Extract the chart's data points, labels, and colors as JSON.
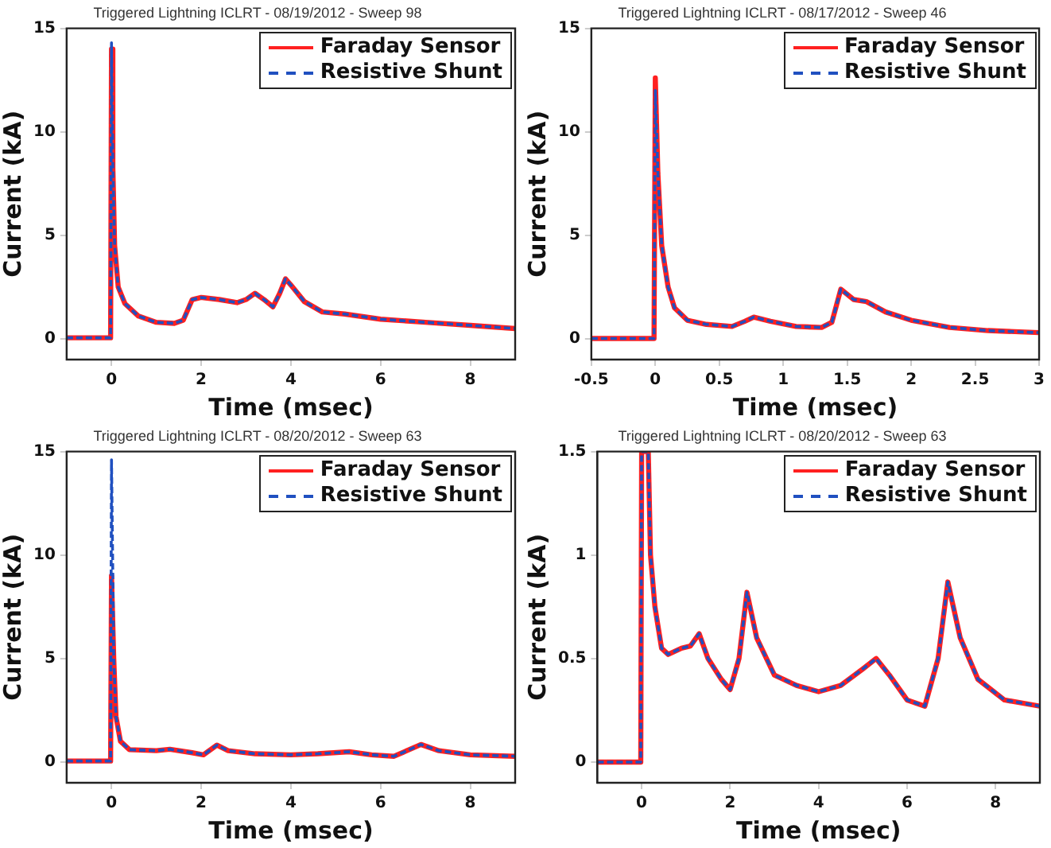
{
  "chart_data": [
    {
      "type": "line",
      "title": "Triggered Lightning ICLRT - 08/19/2012 - Sweep 98",
      "xlabel": "Time (msec)",
      "ylabel": "Current (kA)",
      "xlim": [
        -1,
        9
      ],
      "xticks": [
        0,
        2,
        4,
        6,
        8
      ],
      "ylim": [
        -1,
        15
      ],
      "yticks": [
        0,
        5,
        10,
        15
      ],
      "legend": "top right",
      "grid": false,
      "x": [
        -1,
        -0.02,
        0,
        0.03,
        0.07,
        0.15,
        0.3,
        0.6,
        1.0,
        1.4,
        1.6,
        1.8,
        2.0,
        2.4,
        2.8,
        3.0,
        3.2,
        3.4,
        3.6,
        3.75,
        3.88,
        4.0,
        4.3,
        4.7,
        5.2,
        6,
        7,
        8,
        9
      ],
      "series": [
        {
          "name": "Faraday Sensor",
          "color": "#ff2020",
          "line_style": "solid",
          "values": [
            0.05,
            0.05,
            14.0,
            8.3,
            4.5,
            2.5,
            1.7,
            1.1,
            0.8,
            0.75,
            0.9,
            1.9,
            2.0,
            1.9,
            1.75,
            1.9,
            2.2,
            1.9,
            1.55,
            2.2,
            2.9,
            2.6,
            1.8,
            1.3,
            1.2,
            0.95,
            0.8,
            0.65,
            0.5
          ]
        },
        {
          "name": "Resistive Shunt",
          "color": "#2050c0",
          "line_style": "dashed",
          "values": [
            0.05,
            0.05,
            14.3,
            8.3,
            4.5,
            2.5,
            1.7,
            1.1,
            0.8,
            0.75,
            0.9,
            1.9,
            2.0,
            1.9,
            1.75,
            1.9,
            2.2,
            1.9,
            1.55,
            2.2,
            2.9,
            2.6,
            1.8,
            1.3,
            1.2,
            0.95,
            0.8,
            0.65,
            0.5
          ]
        }
      ]
    },
    {
      "type": "line",
      "title": "Triggered Lightning ICLRT - 08/17/2012 - Sweep 46",
      "xlabel": "Time (msec)",
      "ylabel": "Current (kA)",
      "xlim": [
        -0.5,
        3
      ],
      "xticks": [
        -0.5,
        0,
        0.5,
        1,
        1.5,
        2,
        2.5,
        3
      ],
      "ylim": [
        -1,
        15
      ],
      "yticks": [
        0,
        5,
        10,
        15
      ],
      "legend": "top right",
      "grid": false,
      "x": [
        -0.5,
        -0.01,
        0,
        0.02,
        0.05,
        0.1,
        0.15,
        0.25,
        0.4,
        0.6,
        0.7,
        0.77,
        0.9,
        1.1,
        1.3,
        1.38,
        1.45,
        1.55,
        1.65,
        1.8,
        2.0,
        2.3,
        2.6,
        3
      ],
      "series": [
        {
          "name": "Faraday Sensor",
          "color": "#ff2020",
          "line_style": "solid",
          "values": [
            0.02,
            0.02,
            12.6,
            8,
            4.5,
            2.5,
            1.5,
            0.9,
            0.7,
            0.6,
            0.85,
            1.05,
            0.85,
            0.6,
            0.55,
            0.8,
            2.4,
            1.9,
            1.8,
            1.3,
            0.9,
            0.55,
            0.4,
            0.3
          ]
        },
        {
          "name": "Resistive Shunt",
          "color": "#2050c0",
          "line_style": "dashed",
          "values": [
            0.02,
            0.02,
            12.0,
            8,
            4.5,
            2.5,
            1.5,
            0.9,
            0.7,
            0.6,
            0.85,
            1.05,
            0.85,
            0.6,
            0.55,
            0.8,
            2.4,
            1.9,
            1.8,
            1.3,
            0.9,
            0.55,
            0.4,
            0.3
          ]
        }
      ]
    },
    {
      "type": "line",
      "title": "Triggered Lightning ICLRT - 08/20/2012 - Sweep 63",
      "xlabel": "Time (msec)",
      "ylabel": "Current (kA)",
      "xlim": [
        -1,
        9
      ],
      "xticks": [
        0,
        2,
        4,
        6,
        8
      ],
      "ylim": [
        -1,
        15
      ],
      "yticks": [
        0,
        5,
        10,
        15
      ],
      "legend": "top right",
      "grid": false,
      "x": [
        -1,
        -0.02,
        0,
        0.05,
        0.1,
        0.2,
        0.4,
        1.0,
        1.3,
        1.8,
        2.05,
        2.35,
        2.6,
        3.2,
        4,
        4.6,
        5.3,
        5.8,
        6.3,
        6.9,
        7.3,
        8,
        9
      ],
      "series": [
        {
          "name": "Faraday Sensor",
          "color": "#ff2020",
          "line_style": "solid",
          "values": [
            0.05,
            0.05,
            9.0,
            5,
            2.2,
            1.0,
            0.6,
            0.55,
            0.62,
            0.45,
            0.35,
            0.82,
            0.55,
            0.4,
            0.35,
            0.4,
            0.5,
            0.35,
            0.28,
            0.85,
            0.55,
            0.35,
            0.28
          ]
        },
        {
          "name": "Resistive Shunt",
          "color": "#2050c0",
          "line_style": "dashed",
          "values": [
            0.05,
            0.05,
            14.6,
            5,
            2.2,
            1.0,
            0.6,
            0.55,
            0.62,
            0.45,
            0.35,
            0.82,
            0.55,
            0.4,
            0.35,
            0.4,
            0.5,
            0.35,
            0.28,
            0.85,
            0.55,
            0.35,
            0.28
          ]
        }
      ]
    },
    {
      "type": "line",
      "title": "Triggered Lightning ICLRT - 08/20/2012 - Sweep 63",
      "xlabel": "Time (msec)",
      "ylabel": "Current (kA)",
      "xlim": [
        -1,
        9
      ],
      "xticks": [
        0,
        2,
        4,
        6,
        8
      ],
      "ylim": [
        -0.1,
        1.5
      ],
      "yticks": [
        0,
        0.5,
        1,
        1.5
      ],
      "legend": "top right",
      "grid": false,
      "x": [
        -1,
        -0.02,
        0,
        0.15,
        0.2,
        0.3,
        0.45,
        0.6,
        0.9,
        1.1,
        1.3,
        1.5,
        1.8,
        2.0,
        2.2,
        2.38,
        2.6,
        3.0,
        3.5,
        4.0,
        4.5,
        5.0,
        5.3,
        5.6,
        6.0,
        6.4,
        6.7,
        6.92,
        7.2,
        7.6,
        8.2,
        9
      ],
      "series": [
        {
          "name": "Faraday Sensor",
          "color": "#ff2020",
          "line_style": "solid",
          "values": [
            0.0,
            0.0,
            1.5,
            1.5,
            1.0,
            0.75,
            0.55,
            0.52,
            0.55,
            0.56,
            0.62,
            0.5,
            0.4,
            0.35,
            0.5,
            0.82,
            0.6,
            0.42,
            0.37,
            0.34,
            0.37,
            0.45,
            0.5,
            0.42,
            0.3,
            0.27,
            0.5,
            0.87,
            0.6,
            0.4,
            0.3,
            0.27
          ]
        },
        {
          "name": "Resistive Shunt",
          "color": "#2050c0",
          "line_style": "dashed",
          "values": [
            0.0,
            0.0,
            1.5,
            1.5,
            1.0,
            0.75,
            0.55,
            0.52,
            0.55,
            0.56,
            0.62,
            0.5,
            0.4,
            0.35,
            0.5,
            0.82,
            0.6,
            0.42,
            0.37,
            0.34,
            0.37,
            0.45,
            0.5,
            0.42,
            0.3,
            0.27,
            0.5,
            0.87,
            0.6,
            0.4,
            0.3,
            0.27
          ]
        }
      ]
    }
  ]
}
